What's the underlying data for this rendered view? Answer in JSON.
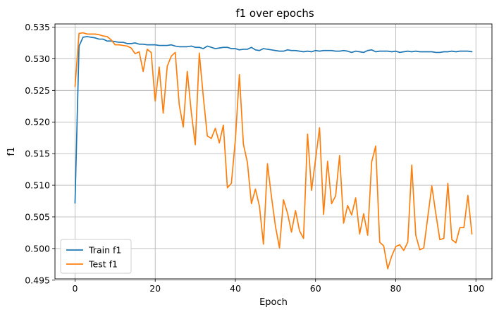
{
  "chart_data": {
    "type": "line",
    "title": "f1 over epochs",
    "xlabel": "Epoch",
    "ylabel": "f1",
    "xlim": [
      -5,
      104
    ],
    "ylim": [
      0.4952,
      0.5355
    ],
    "xticks": [
      0,
      20,
      40,
      60,
      80,
      100
    ],
    "xtick_labels": [
      "0",
      "20",
      "40",
      "60",
      "80",
      "100"
    ],
    "yticks": [
      0.495,
      0.5,
      0.505,
      0.51,
      0.515,
      0.52,
      0.525,
      0.53,
      0.535
    ],
    "ytick_labels": [
      "0.495",
      "0.500",
      "0.505",
      "0.510",
      "0.515",
      "0.520",
      "0.525",
      "0.530",
      "0.535"
    ],
    "grid": true,
    "legend_position": "lower-left",
    "series": [
      {
        "name": "Train f1",
        "color": "#1f77b4",
        "values": [
          0.5072,
          0.532,
          0.5334,
          0.5335,
          0.5334,
          0.5333,
          0.5331,
          0.5331,
          0.5328,
          0.5328,
          0.5327,
          0.5326,
          0.5326,
          0.5324,
          0.5324,
          0.5325,
          0.5323,
          0.5323,
          0.5322,
          0.5322,
          0.5322,
          0.5321,
          0.5321,
          0.5321,
          0.5322,
          0.532,
          0.5319,
          0.5319,
          0.5319,
          0.532,
          0.5318,
          0.5318,
          0.5316,
          0.532,
          0.5318,
          0.5316,
          0.5317,
          0.5318,
          0.5318,
          0.5316,
          0.5316,
          0.5314,
          0.5315,
          0.5315,
          0.5318,
          0.5314,
          0.5313,
          0.5316,
          0.5315,
          0.5314,
          0.5313,
          0.5312,
          0.5312,
          0.5314,
          0.5313,
          0.5313,
          0.5312,
          0.5311,
          0.5312,
          0.5311,
          0.5313,
          0.5312,
          0.5313,
          0.5313,
          0.5313,
          0.5312,
          0.5312,
          0.5313,
          0.5312,
          0.531,
          0.5312,
          0.5311,
          0.531,
          0.5313,
          0.5314,
          0.5311,
          0.5312,
          0.5312,
          0.5312,
          0.5311,
          0.5312,
          0.531,
          0.5311,
          0.5312,
          0.5311,
          0.5312,
          0.5311,
          0.5311,
          0.5311,
          0.5311,
          0.531,
          0.531,
          0.5311,
          0.5311,
          0.5312,
          0.5311,
          0.5312,
          0.5312,
          0.5312,
          0.5311
        ]
      },
      {
        "name": "Test f1",
        "color": "#ff7f0e",
        "values": [
          0.5256,
          0.534,
          0.5341,
          0.5339,
          0.5339,
          0.5339,
          0.5338,
          0.5336,
          0.5335,
          0.533,
          0.5322,
          0.5322,
          0.5321,
          0.532,
          0.5317,
          0.5308,
          0.5311,
          0.528,
          0.5315,
          0.531,
          0.5233,
          0.5287,
          0.5214,
          0.5288,
          0.5304,
          0.531,
          0.5227,
          0.5192,
          0.528,
          0.5216,
          0.5164,
          0.5309,
          0.524,
          0.5178,
          0.5174,
          0.519,
          0.5167,
          0.5195,
          0.5096,
          0.5103,
          0.5172,
          0.5275,
          0.5165,
          0.5136,
          0.5071,
          0.5094,
          0.5067,
          0.5007,
          0.5134,
          0.5082,
          0.5035,
          0.5001,
          0.5077,
          0.5056,
          0.5026,
          0.506,
          0.5028,
          0.5016,
          0.5181,
          0.5092,
          0.5141,
          0.5191,
          0.5054,
          0.5138,
          0.5071,
          0.5083,
          0.5147,
          0.504,
          0.5068,
          0.5053,
          0.508,
          0.5023,
          0.5055,
          0.5021,
          0.5137,
          0.5162,
          0.501,
          0.5004,
          0.4968,
          0.4988,
          0.5003,
          0.5006,
          0.4997,
          0.501,
          0.5132,
          0.5021,
          0.4998,
          0.5001,
          0.505,
          0.5099,
          0.5055,
          0.5014,
          0.5016,
          0.5103,
          0.5014,
          0.5009,
          0.5033,
          0.5033,
          0.5084,
          0.5023
        ]
      }
    ]
  }
}
